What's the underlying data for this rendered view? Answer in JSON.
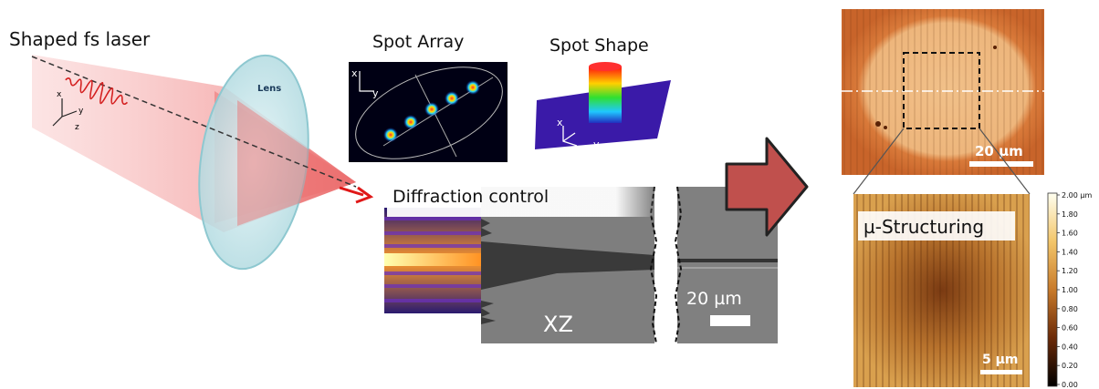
{
  "labels": {
    "shaped_laser": "Shaped fs laser",
    "lens": "Lens",
    "spot_array": "Spot Array",
    "spot_shape": "Spot Shape",
    "diffraction_control": "Diffraction control",
    "xz": "XZ",
    "scale_20um_xz": "20 µm",
    "scale_20um_afm": "20 µm",
    "micro_structuring": "µ-Structuring",
    "scale_5um": "5 µm"
  },
  "axes": {
    "laser_x": "x",
    "laser_y": "y",
    "laser_z": "z",
    "array_x": "x",
    "array_y": "y",
    "shape_x": "x",
    "shape_y": "y"
  },
  "colorbar": {
    "ticks": [
      "2.00 µm",
      "1.80",
      "1.60",
      "1.40",
      "1.20",
      "1.00",
      "0.80",
      "0.60",
      "0.40",
      "0.20",
      "0.00"
    ]
  },
  "colors": {
    "laser": "#f08080",
    "lens": "#bfe3e8",
    "arrow_fill": "#c0504d",
    "afm_light": "#e9a15e",
    "afm_dark": "#8a3a10"
  }
}
